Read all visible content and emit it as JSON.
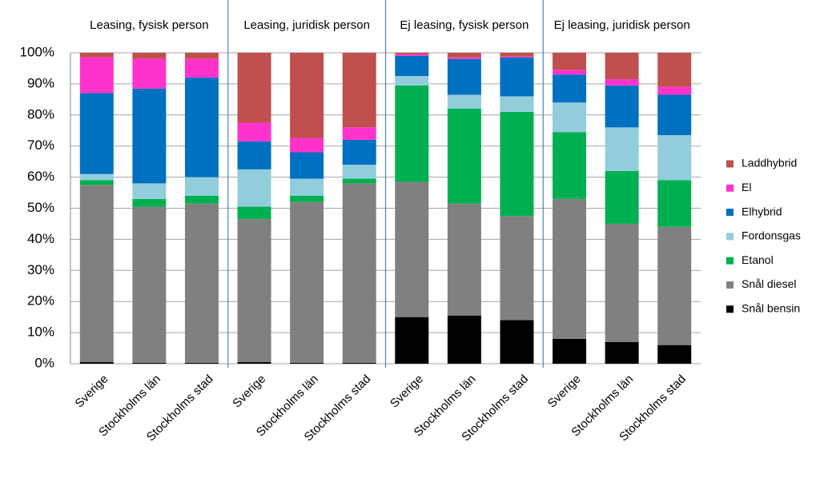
{
  "chart_data": {
    "type": "stacked_bar",
    "group_labels": [
      "Leasing, fysisk person",
      "Leasing, juridisk person",
      "Ej leasing, fysisk person",
      "Ej leasing, juridisk person"
    ],
    "categories": [
      "Sverige",
      "Stockholms län",
      "Stockholms stad",
      "Sverige",
      "Stockholms län",
      "Stockholms stad",
      "Sverige",
      "Stockholms län",
      "Stockholms stad",
      "Sverige",
      "Stockholms län",
      "Stockholms stad"
    ],
    "series": [
      {
        "name": "Snål bensin",
        "color": "#000000",
        "values": [
          0.5,
          0.3,
          0.3,
          0.5,
          0.3,
          0.3,
          15,
          15.5,
          14,
          8,
          7,
          6
        ]
      },
      {
        "name": "Snål diesel",
        "color": "#808080",
        "values": [
          57,
          50.2,
          51.2,
          46,
          51.7,
          57.7,
          43.5,
          36,
          33.5,
          45,
          38,
          38
        ]
      },
      {
        "name": "Etanol",
        "color": "#00b050",
        "values": [
          1.5,
          2.5,
          2.5,
          4,
          2,
          1.5,
          31,
          30.5,
          33.5,
          21.5,
          17,
          15
        ]
      },
      {
        "name": "Fordonsgas",
        "color": "#92cddc",
        "values": [
          2,
          5,
          6,
          12,
          5.5,
          4.5,
          3,
          4.5,
          5,
          9.5,
          14,
          14.5
        ]
      },
      {
        "name": "Elhybrid",
        "color": "#0070c0",
        "values": [
          26,
          30.5,
          32,
          9,
          8.5,
          8,
          6.5,
          11.5,
          12.5,
          9,
          13.5,
          13
        ]
      },
      {
        "name": "El",
        "color": "#ff33cc",
        "values": [
          11.5,
          9.5,
          6,
          6,
          4.5,
          4,
          0.5,
          0.5,
          0.3,
          1.5,
          2,
          2.5
        ]
      },
      {
        "name": "Laddhybrid",
        "color": "#c0504d",
        "values": [
          1.5,
          2,
          2,
          22.5,
          27.5,
          24,
          0.5,
          1.5,
          1.2,
          5.5,
          8.5,
          11
        ]
      }
    ],
    "ylim": [
      0,
      100
    ],
    "yticks": [
      {
        "value": 0,
        "label": "0%"
      },
      {
        "value": 10,
        "label": "10%"
      },
      {
        "value": 20,
        "label": "20%"
      },
      {
        "value": 30,
        "label": "30%"
      },
      {
        "value": 40,
        "label": "40%"
      },
      {
        "value": 50,
        "label": "50%"
      },
      {
        "value": 60,
        "label": "60%"
      },
      {
        "value": 70,
        "label": "70%"
      },
      {
        "value": 80,
        "label": "80%"
      },
      {
        "value": 90,
        "label": "90%"
      },
      {
        "value": 100,
        "label": "100%"
      }
    ],
    "grid": true,
    "legend": "right"
  }
}
